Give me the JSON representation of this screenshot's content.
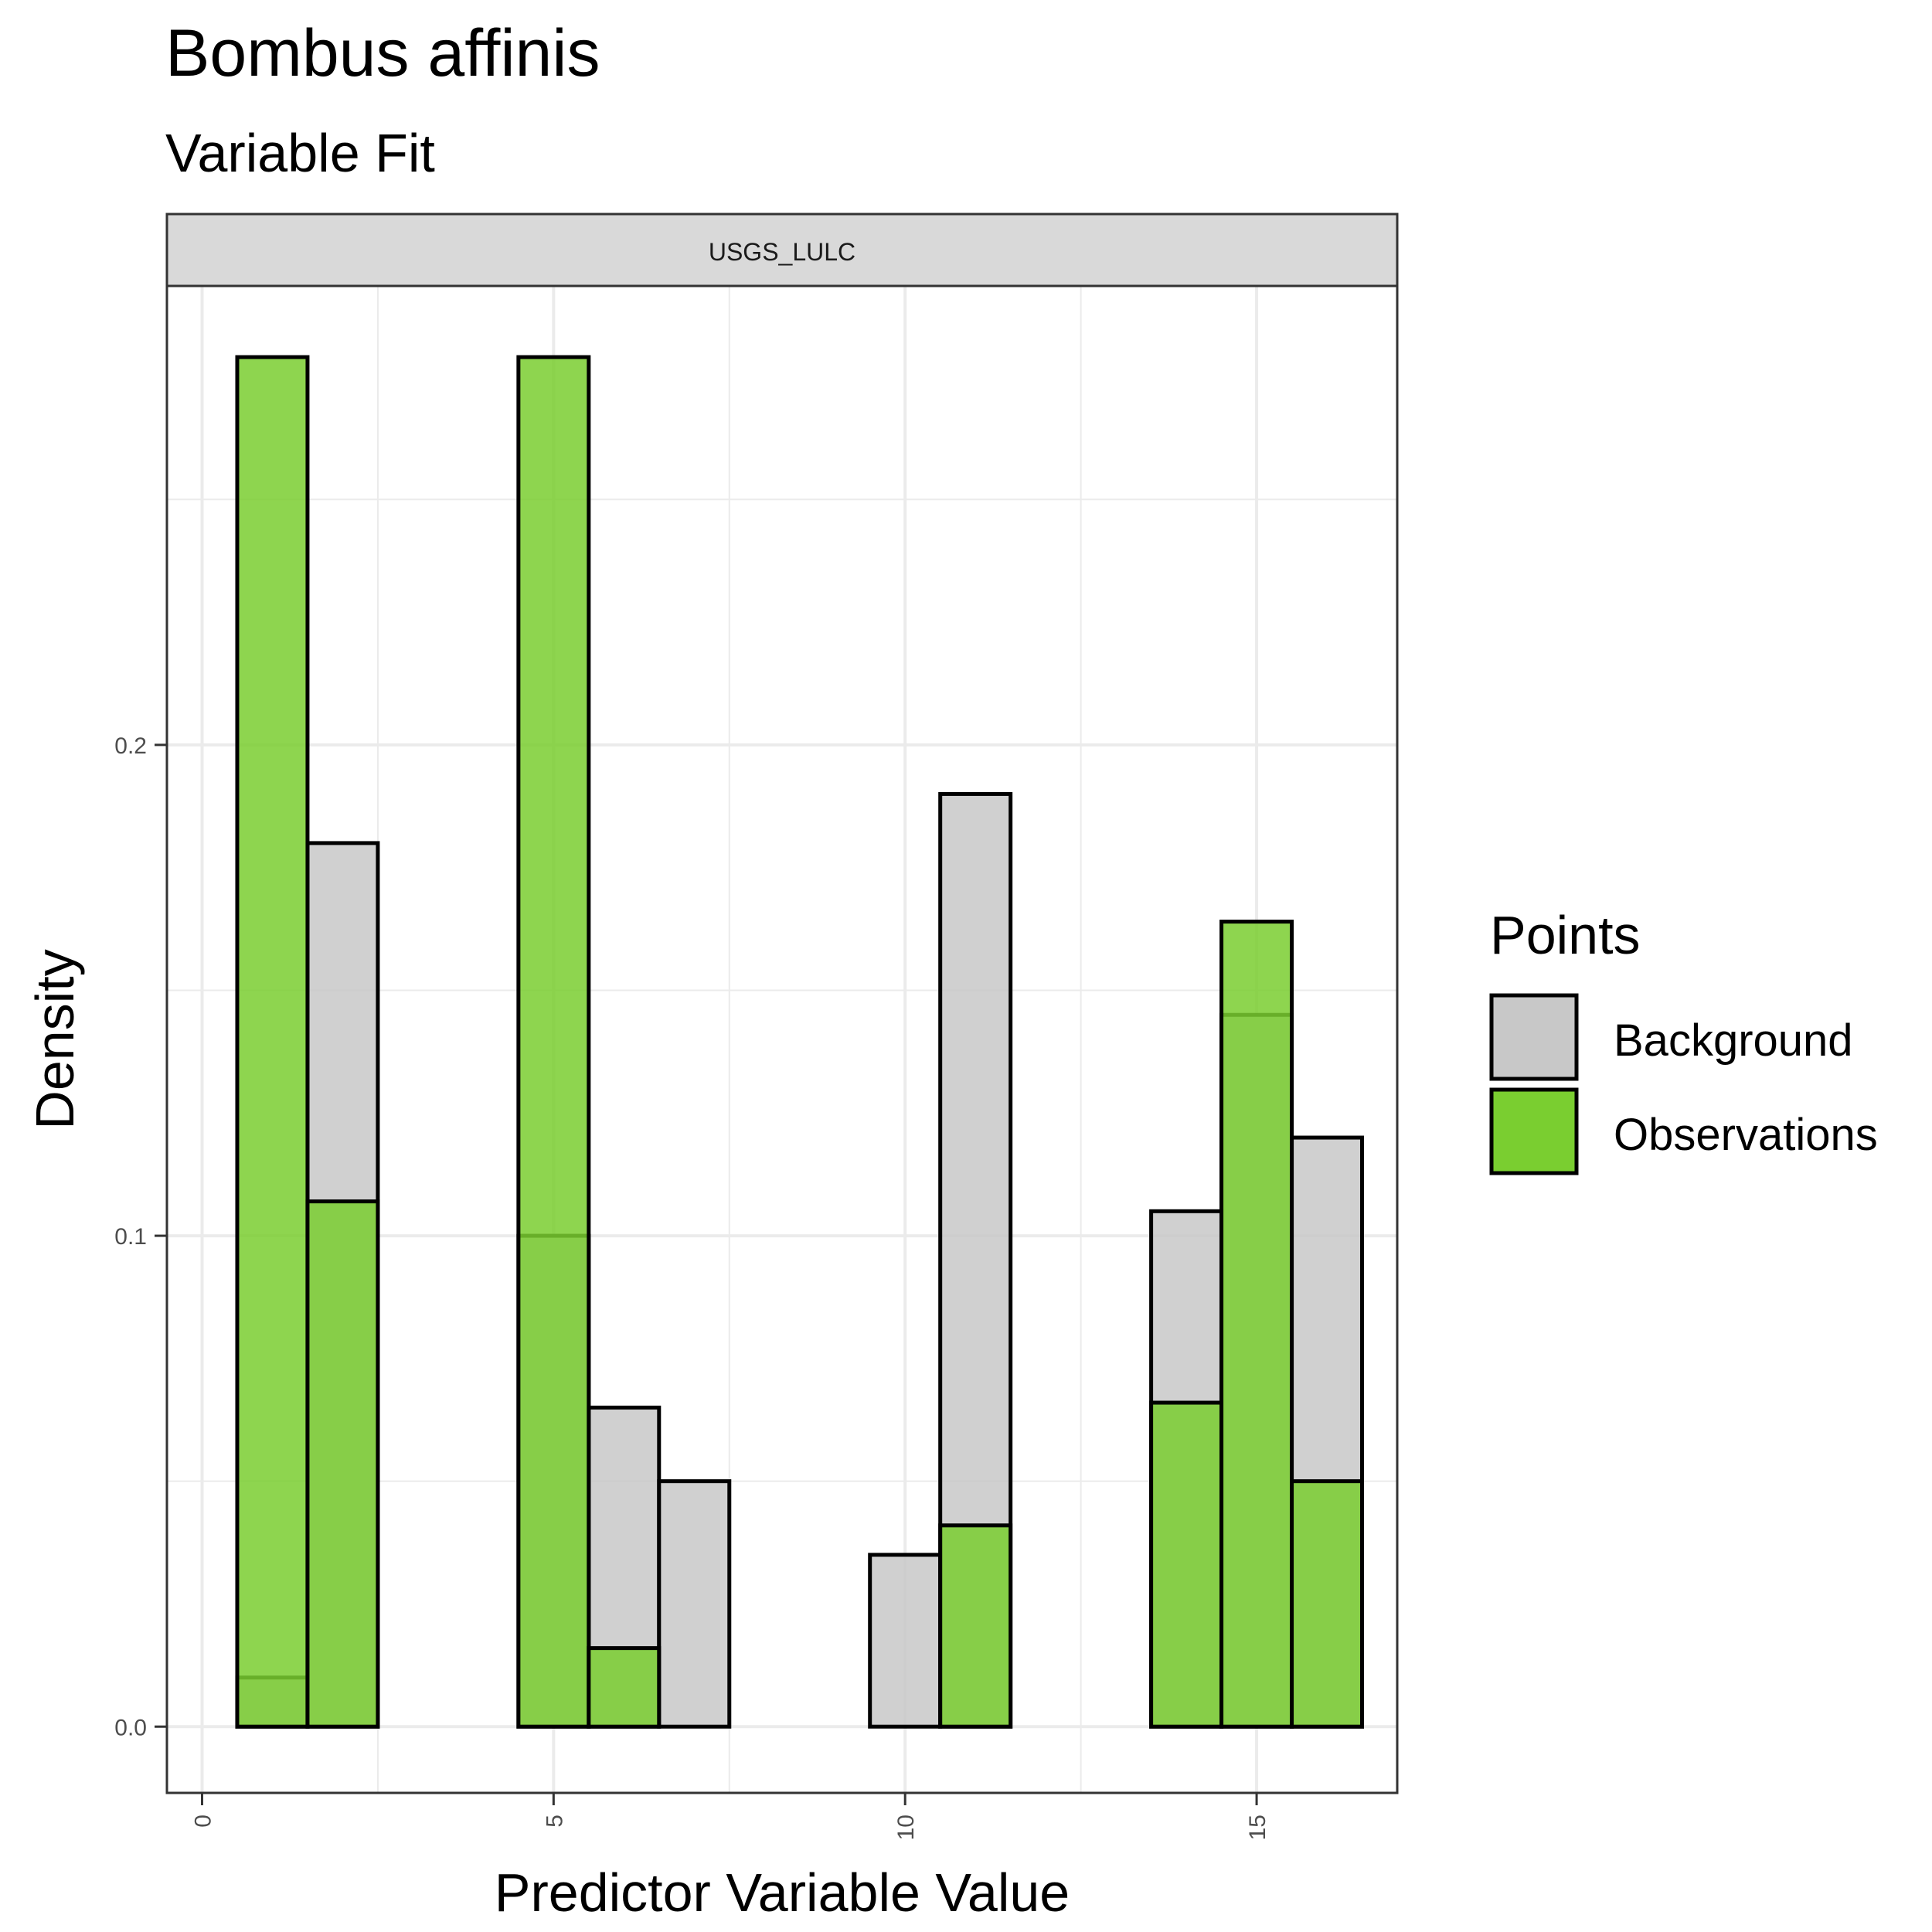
{
  "chart_data": {
    "type": "bar",
    "title": "Bombus affinis",
    "subtitle": "Variable Fit",
    "facet_label": "USGS_LULC",
    "xlabel": "Predictor Variable Value",
    "ylabel": "Density",
    "xlim": [
      -0.5,
      17.0
    ],
    "ylim": [
      -0.0135,
      0.2935
    ],
    "x_ticks": [
      "0",
      "5",
      "10",
      "15"
    ],
    "x_tick_values": [
      0,
      5,
      10,
      15
    ],
    "y_ticks": [
      "0.0",
      "0.1",
      "0.2"
    ],
    "y_tick_values": [
      0.0,
      0.1,
      0.2
    ],
    "grid": true,
    "legend": {
      "title": "Points",
      "position": "right",
      "entries": [
        {
          "name": "Background",
          "color": "#c8c8c8"
        },
        {
          "name": "Observations",
          "color": "#7ace30"
        }
      ]
    },
    "bin_width": 1,
    "series": [
      {
        "name": "Background",
        "color": "#c8c8c8",
        "x": [
          1,
          2,
          3,
          4,
          5,
          6,
          7,
          8,
          9,
          10,
          11,
          12,
          13,
          14,
          15,
          16
        ],
        "values": [
          0.01,
          0.18,
          0,
          0,
          0.1,
          0.065,
          0.05,
          0,
          0,
          0.035,
          0.19,
          0,
          0,
          0.105,
          0.145,
          0.12
        ]
      },
      {
        "name": "Observations",
        "color": "#7ace30",
        "x": [
          1,
          2,
          3,
          4,
          5,
          6,
          7,
          8,
          9,
          10,
          11,
          12,
          13,
          14,
          15,
          16
        ],
        "values": [
          0.279,
          0.107,
          0,
          0,
          0.279,
          0.016,
          0,
          0,
          0,
          0,
          0.041,
          0,
          0,
          0.066,
          0.164,
          0.05
        ]
      }
    ]
  }
}
